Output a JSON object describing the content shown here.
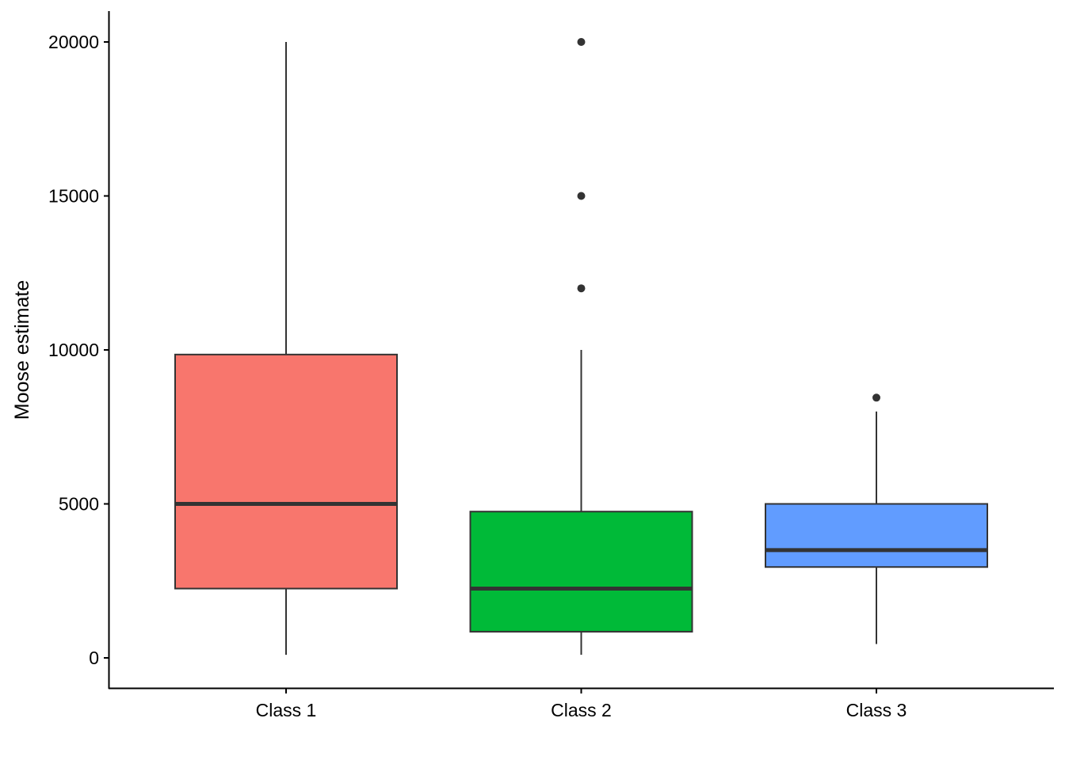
{
  "chart_data": {
    "type": "boxplot",
    "title": "",
    "xlabel": "",
    "ylabel": "Moose estimate",
    "ylim": [
      -900,
      20950
    ],
    "yticks": [
      0,
      5000,
      10000,
      15000,
      20000
    ],
    "ytick_labels": [
      "0",
      "5000",
      "10000",
      "15000",
      "20000"
    ],
    "grid": false,
    "legend": "none",
    "categories": [
      "Class 1",
      "Class 2",
      "Class 3"
    ],
    "boxes": [
      {
        "category": "Class 1",
        "color": "#F8766D",
        "whisker_low": 100,
        "q1": 2250,
        "median": 5000,
        "q3": 9850,
        "whisker_high": 20000,
        "outliers": []
      },
      {
        "category": "Class 2",
        "color": "#00BA38",
        "whisker_low": 100,
        "q1": 850,
        "median": 2250,
        "q3": 4750,
        "whisker_high": 10000,
        "outliers": [
          12000,
          15000,
          20000
        ]
      },
      {
        "category": "Class 3",
        "color": "#619CFF",
        "whisker_low": 450,
        "q1": 2950,
        "median": 3500,
        "q3": 5000,
        "whisker_high": 8000,
        "outliers": [
          8450
        ]
      }
    ]
  }
}
